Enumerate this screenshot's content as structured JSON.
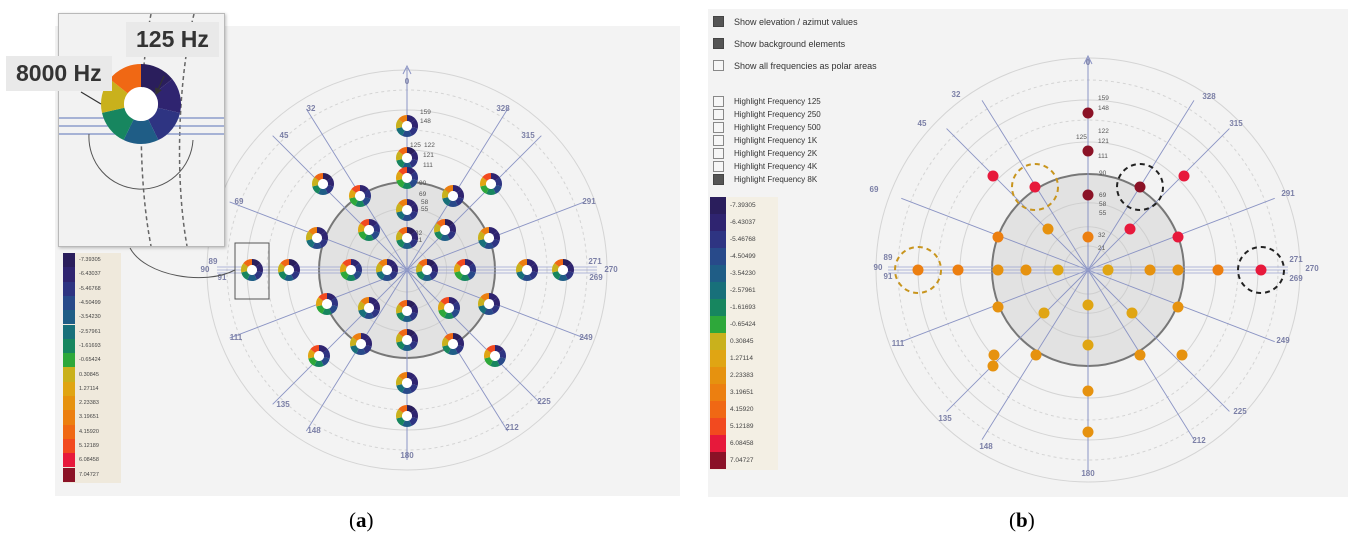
{
  "colors": {
    "panel_bg": "#f3f3f3",
    "axis": "#8b94c4",
    "label": "#7b7fa6",
    "ring": "#d4d4d4",
    "inner_disk": "#e2e2e2",
    "highlight_dash_orange": "#c8951e",
    "highlight_dash_black": "#222222"
  },
  "panel_a": {
    "caption_letter": "a",
    "zoom_callouts": {
      "low": "125 Hz",
      "high": "8000 Hz"
    },
    "axis_label_top": "0",
    "axis_label_bottom": "180",
    "angle_labels": [
      "32",
      "328",
      "45",
      "315",
      "69",
      "291",
      "89",
      "90",
      "91",
      "271",
      "270",
      "269",
      "111",
      "249",
      "135",
      "225",
      "148",
      "212"
    ],
    "elevation_labels": [
      "159",
      "148",
      "125",
      "122",
      "121",
      "111",
      "90",
      "69",
      "58",
      "55",
      "32",
      "21"
    ],
    "legend": [
      "-7.39305",
      "-6.43037",
      "-5.46768",
      "-4.50499",
      "-3.54230",
      "-2.57961",
      "-1.61693",
      "-0.65424",
      "0.30845",
      "1.27114",
      "2.23383",
      "3.19651",
      "4.15920",
      "5.12189",
      "6.08458",
      "7.04727"
    ]
  },
  "panel_b": {
    "caption_letter": "b",
    "controls": [
      {
        "label": "Show elevation / azimut values",
        "checked": true
      },
      {
        "label": "Show background elements",
        "checked": true
      },
      {
        "label": "Show all frequencies as polar areas",
        "checked": false
      }
    ],
    "frequency_toggles": [
      {
        "label": "Highlight Frequency 125",
        "checked": false
      },
      {
        "label": "Highlight Frequency 250",
        "checked": false
      },
      {
        "label": "Highlight Frequency 500",
        "checked": false
      },
      {
        "label": "Highlight Frequency 1K",
        "checked": false
      },
      {
        "label": "Highlight Frequency 2K",
        "checked": false
      },
      {
        "label": "Highlight Frequency 4K",
        "checked": false
      },
      {
        "label": "Highlight Frequency 8K",
        "checked": true
      }
    ],
    "axis_label_top": "0",
    "axis_label_bottom": "180",
    "angle_labels": [
      "32",
      "328",
      "45",
      "315",
      "69",
      "291",
      "89",
      "90",
      "91",
      "271",
      "270",
      "269",
      "111",
      "249",
      "135",
      "225",
      "148",
      "212"
    ],
    "elevation_labels": [
      "159",
      "148",
      "125",
      "122",
      "121",
      "111",
      "90",
      "69",
      "58",
      "55",
      "32",
      "21"
    ],
    "legend": [
      "-7.39305",
      "-6.43037",
      "-5.46768",
      "-4.50499",
      "-3.54230",
      "-2.57961",
      "-1.61693",
      "-0.65424",
      "0.30845",
      "1.27114",
      "2.23383",
      "3.19651",
      "4.15920",
      "5.12189",
      "6.08458",
      "7.04727"
    ]
  },
  "palette": [
    "#2a1e5c",
    "#2f2470",
    "#2e3482",
    "#284a8a",
    "#1f5d86",
    "#18707a",
    "#17865f",
    "#2ea83a",
    "#c9b11c",
    "#e0a513",
    "#e6920f",
    "#ec7f10",
    "#f06814",
    "#f24a1f",
    "#e7193b",
    "#8b1226"
  ]
}
